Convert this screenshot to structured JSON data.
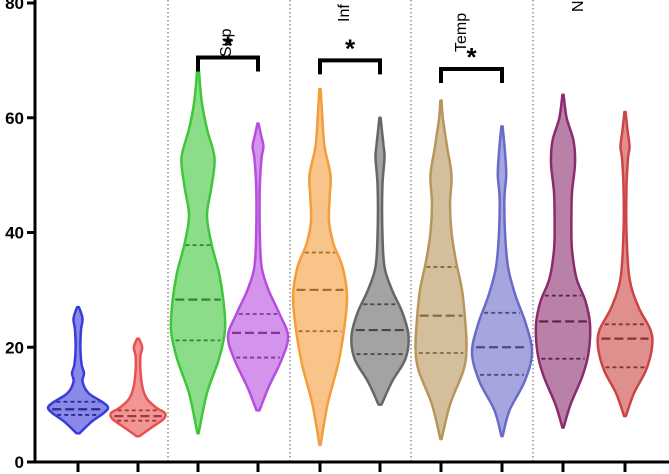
{
  "chart_data": {
    "type": "violin",
    "y_axis": {
      "range": [
        0,
        80
      ],
      "ticks": [
        0,
        20,
        40,
        60,
        80
      ]
    },
    "groups": [
      {
        "label": "",
        "violins": [
          0,
          1
        ]
      },
      {
        "label": "Sup",
        "violins": [
          2,
          3
        ]
      },
      {
        "label": "Inf",
        "violins": [
          4,
          5
        ]
      },
      {
        "label": "Temp",
        "violins": [
          6,
          7
        ]
      },
      {
        "label": "N",
        "violins": [
          8,
          9
        ]
      }
    ],
    "significance": [
      {
        "from": 2,
        "to": 3,
        "label": "*",
        "y": 70.5
      },
      {
        "from": 4,
        "to": 5,
        "label": "*",
        "y": 70
      },
      {
        "from": 6,
        "to": 7,
        "label": "*",
        "y": 68.5
      }
    ],
    "violins": [
      {
        "color": "#3b3bd9",
        "min": 5,
        "max": 27,
        "q1": 8.2,
        "median": 9.2,
        "q3": 10.5,
        "profile": [
          [
            5,
            0.05
          ],
          [
            7,
            0.45
          ],
          [
            8.5,
            0.85
          ],
          [
            9.5,
            1
          ],
          [
            10.5,
            0.8
          ],
          [
            12,
            0.35
          ],
          [
            14,
            0.15
          ],
          [
            15.5,
            0.2
          ],
          [
            17,
            0.12
          ],
          [
            20,
            0.08
          ],
          [
            23,
            0.1
          ],
          [
            25,
            0.15
          ],
          [
            27,
            0.03
          ]
        ]
      },
      {
        "color": "#e8504f",
        "min": 4.5,
        "max": 21.5,
        "q1": 7.2,
        "median": 8.0,
        "q3": 9.0,
        "profile": [
          [
            4.5,
            0.05
          ],
          [
            6,
            0.45
          ],
          [
            7.5,
            0.85
          ],
          [
            8.5,
            0.9
          ],
          [
            9.5,
            0.6
          ],
          [
            11,
            0.3
          ],
          [
            13,
            0.15
          ],
          [
            16,
            0.08
          ],
          [
            18.5,
            0.08
          ],
          [
            20,
            0.14
          ],
          [
            21.5,
            0.03
          ]
        ]
      },
      {
        "color": "#3fc63a",
        "min": 5,
        "max": 69,
        "q1": 21.2,
        "median": 28.3,
        "q3": 37.8,
        "profile": [
          [
            5,
            0.02
          ],
          [
            12,
            0.3
          ],
          [
            18,
            0.7
          ],
          [
            23,
            0.9
          ],
          [
            28,
            0.85
          ],
          [
            33,
            0.7
          ],
          [
            38,
            0.45
          ],
          [
            43,
            0.3
          ],
          [
            48,
            0.45
          ],
          [
            53,
            0.55
          ],
          [
            58,
            0.3
          ],
          [
            63,
            0.12
          ],
          [
            69,
            0.02
          ]
        ]
      },
      {
        "color": "#b74de0",
        "min": 9,
        "max": 59,
        "q1": 18.2,
        "median": 22.5,
        "q3": 25.8,
        "profile": [
          [
            9,
            0.05
          ],
          [
            13,
            0.35
          ],
          [
            18,
            0.8
          ],
          [
            22,
            1
          ],
          [
            26,
            0.7
          ],
          [
            30,
            0.35
          ],
          [
            34,
            0.12
          ],
          [
            40,
            0.06
          ],
          [
            48,
            0.06
          ],
          [
            53,
            0.12
          ],
          [
            55,
            0.18
          ],
          [
            57,
            0.1
          ],
          [
            59,
            0.02
          ]
        ]
      },
      {
        "color": "#f59d3a",
        "min": 3,
        "max": 65,
        "q1": 22.8,
        "median": 30.0,
        "q3": 36.5,
        "profile": [
          [
            3,
            0.02
          ],
          [
            10,
            0.25
          ],
          [
            17,
            0.6
          ],
          [
            23,
            0.8
          ],
          [
            29,
            0.9
          ],
          [
            34,
            0.75
          ],
          [
            38,
            0.45
          ],
          [
            42,
            0.3
          ],
          [
            46,
            0.32
          ],
          [
            50,
            0.35
          ],
          [
            55,
            0.15
          ],
          [
            60,
            0.08
          ],
          [
            65,
            0.02
          ]
        ]
      },
      {
        "color": "#666666",
        "min": 10,
        "max": 60,
        "q1": 18.8,
        "median": 23.0,
        "q3": 27.5,
        "profile": [
          [
            10,
            0.05
          ],
          [
            14,
            0.4
          ],
          [
            18,
            0.85
          ],
          [
            22,
            0.95
          ],
          [
            26,
            0.75
          ],
          [
            30,
            0.4
          ],
          [
            34,
            0.15
          ],
          [
            40,
            0.08
          ],
          [
            48,
            0.08
          ],
          [
            53,
            0.15
          ],
          [
            55,
            0.12
          ],
          [
            58,
            0.06
          ],
          [
            60,
            0.02
          ]
        ]
      },
      {
        "color": "#b8955a",
        "min": 4,
        "max": 63,
        "q1": 19.0,
        "median": 25.5,
        "q3": 34.0,
        "profile": [
          [
            4,
            0.02
          ],
          [
            10,
            0.3
          ],
          [
            16,
            0.75
          ],
          [
            20,
            0.85
          ],
          [
            25,
            0.8
          ],
          [
            30,
            0.7
          ],
          [
            35,
            0.5
          ],
          [
            40,
            0.35
          ],
          [
            45,
            0.3
          ],
          [
            50,
            0.35
          ],
          [
            55,
            0.2
          ],
          [
            60,
            0.06
          ],
          [
            63,
            0.02
          ]
        ]
      },
      {
        "color": "#6a6ac8",
        "min": 4.5,
        "max": 58.5,
        "q1": 15.2,
        "median": 20.0,
        "q3": 26.0,
        "profile": [
          [
            4.5,
            0.02
          ],
          [
            9,
            0.25
          ],
          [
            14,
            0.75
          ],
          [
            19,
            1
          ],
          [
            24,
            0.8
          ],
          [
            29,
            0.45
          ],
          [
            34,
            0.2
          ],
          [
            40,
            0.1
          ],
          [
            46,
            0.08
          ],
          [
            50,
            0.14
          ],
          [
            54,
            0.1
          ],
          [
            58.5,
            0.02
          ]
        ]
      },
      {
        "color": "#8b2b6e",
        "min": 6,
        "max": 64,
        "q1": 18.0,
        "median": 24.5,
        "q3": 29.0,
        "profile": [
          [
            6,
            0.02
          ],
          [
            10,
            0.25
          ],
          [
            15,
            0.65
          ],
          [
            19,
            0.85
          ],
          [
            24,
            0.9
          ],
          [
            28,
            0.75
          ],
          [
            32,
            0.45
          ],
          [
            37,
            0.3
          ],
          [
            42,
            0.28
          ],
          [
            47,
            0.3
          ],
          [
            52,
            0.4
          ],
          [
            56,
            0.35
          ],
          [
            60,
            0.12
          ],
          [
            64,
            0.02
          ]
        ]
      },
      {
        "color": "#cc4444",
        "min": 8,
        "max": 61,
        "q1": 16.5,
        "median": 21.5,
        "q3": 24.0,
        "profile": [
          [
            8,
            0.03
          ],
          [
            12,
            0.3
          ],
          [
            16,
            0.7
          ],
          [
            20,
            0.9
          ],
          [
            23,
            0.85
          ],
          [
            27,
            0.45
          ],
          [
            32,
            0.15
          ],
          [
            40,
            0.05
          ],
          [
            48,
            0.05
          ],
          [
            53,
            0.1
          ],
          [
            55,
            0.15
          ],
          [
            58,
            0.08
          ],
          [
            61,
            0.02
          ]
        ]
      }
    ]
  }
}
